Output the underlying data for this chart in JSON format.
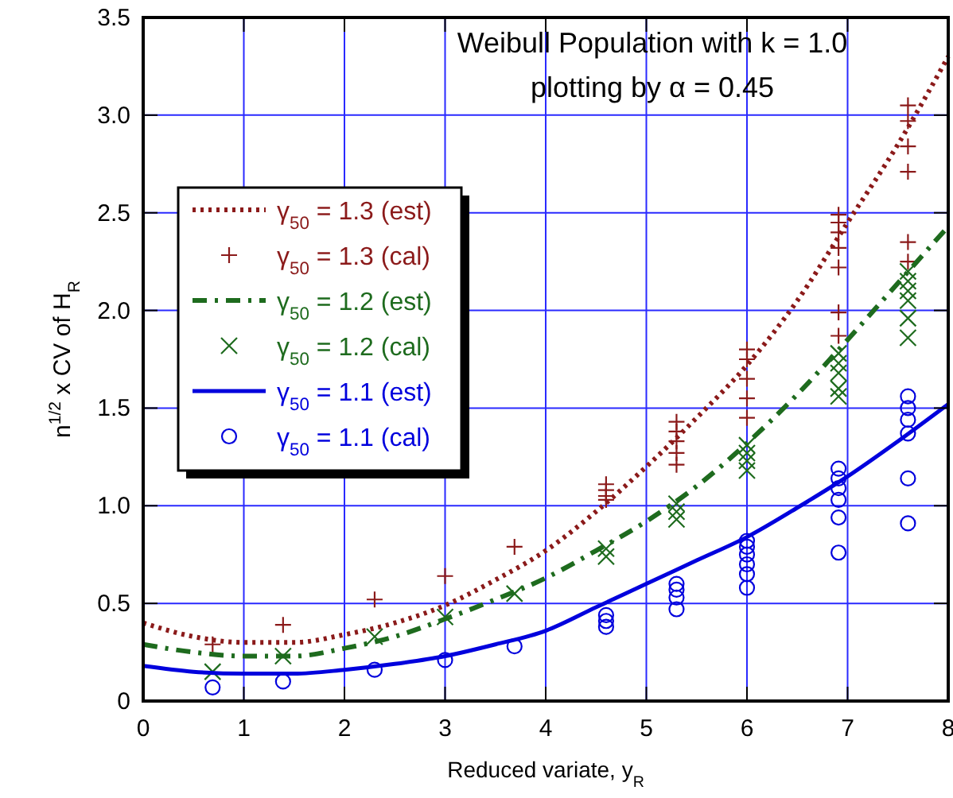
{
  "chart_data": {
    "type": "scatter",
    "title": "Weibull Population with k = 1.0",
    "subtitle": "plotting by α = 0.45",
    "xlabel": "Reduced variate, y$_{R}$",
    "ylabel": "n$^{1/2}$ x CV of H$_{R}$",
    "xlim": [
      0,
      8
    ],
    "xticks": [
      0,
      1,
      2,
      3,
      4,
      5,
      6,
      7,
      8
    ],
    "ylim": [
      0,
      3.5
    ],
    "yticks": [
      0,
      0.5,
      {
        "value": 1,
        "label": "1.0"
      },
      1.5,
      {
        "value": 2,
        "label": "2.0"
      },
      2.5,
      {
        "value": 3,
        "label": "3.0"
      },
      3.5
    ],
    "grid": true,
    "legend": "top left",
    "series": [
      {
        "name": "γ$_{50}$ = 1.3 (est)",
        "type": "line",
        "line_style": "dotted",
        "marker": "none",
        "color": "#8b1a1a",
        "x": [
          0,
          0.5,
          1,
          1.5,
          2,
          2.5,
          3,
          3.5,
          4,
          4.5,
          5,
          5.5,
          6,
          6.5,
          7,
          7.5,
          8
        ],
        "values": [
          0.4,
          0.33,
          0.3,
          0.3,
          0.34,
          0.4,
          0.49,
          0.62,
          0.77,
          0.97,
          1.2,
          1.45,
          1.72,
          2.05,
          2.45,
          2.85,
          3.3
        ]
      },
      {
        "name": "γ$_{50}$ = 1.3 (cal)",
        "marker": "cross",
        "color": "#8b1a1a",
        "x": [
          0.69,
          1.39,
          2.3,
          3.0,
          3.69,
          4.6,
          4.6,
          4.6,
          4.6,
          5.3,
          5.3,
          5.3,
          5.3,
          5.3,
          6.0,
          6.0,
          6.0,
          6.0,
          6.0,
          6.91,
          6.91,
          6.91,
          6.91,
          6.91,
          6.91,
          6.91,
          7.6,
          7.6,
          7.6,
          7.6,
          7.6,
          7.6
        ],
        "values": [
          0.29,
          0.39,
          0.52,
          0.64,
          0.79,
          1.11,
          1.08,
          1.05,
          1.03,
          1.43,
          1.38,
          1.33,
          1.27,
          1.21,
          1.8,
          1.75,
          1.65,
          1.55,
          1.45,
          2.49,
          2.45,
          2.4,
          2.32,
          2.22,
          1.99,
          1.87,
          3.05,
          2.97,
          2.84,
          2.71,
          2.35,
          2.25
        ]
      },
      {
        "name": "γ$_{50}$ = 1.2 (est)",
        "type": "line",
        "line_style": "dashdot",
        "marker": "none",
        "color": "#1e6b1e",
        "x": [
          0,
          0.5,
          1,
          1.5,
          2,
          2.5,
          3,
          3.5,
          4,
          4.5,
          5,
          5.5,
          6,
          6.5,
          7,
          7.5,
          8
        ],
        "values": [
          0.29,
          0.25,
          0.23,
          0.23,
          0.27,
          0.33,
          0.42,
          0.52,
          0.63,
          0.77,
          0.92,
          1.1,
          1.32,
          1.57,
          1.85,
          2.14,
          2.43
        ]
      },
      {
        "name": "γ$_{50}$ = 1.2 (cal)",
        "marker": "x",
        "color": "#1e6b1e",
        "x": [
          0.69,
          1.39,
          2.3,
          3.0,
          3.69,
          4.6,
          4.6,
          5.3,
          5.3,
          5.3,
          6.0,
          6.0,
          6.0,
          6.0,
          6.91,
          6.91,
          6.91,
          6.91,
          6.91,
          7.6,
          7.6,
          7.6,
          7.6,
          7.6,
          7.6
        ],
        "values": [
          0.15,
          0.23,
          0.33,
          0.43,
          0.55,
          0.78,
          0.74,
          1.01,
          0.97,
          0.93,
          1.31,
          1.27,
          1.23,
          1.18,
          1.78,
          1.73,
          1.68,
          1.6,
          1.56,
          2.2,
          2.15,
          2.1,
          2.05,
          1.96,
          1.86
        ]
      },
      {
        "name": "γ$_{50}$ = 1.1 (est)",
        "type": "line",
        "line_style": "solid",
        "marker": "none",
        "color": "#0000dd",
        "x": [
          0,
          0.5,
          1,
          1.5,
          2,
          2.5,
          3,
          3.5,
          4,
          4.5,
          5,
          5.5,
          6,
          6.5,
          7,
          7.5,
          8
        ],
        "values": [
          0.18,
          0.15,
          0.14,
          0.14,
          0.16,
          0.19,
          0.23,
          0.29,
          0.36,
          0.48,
          0.6,
          0.72,
          0.84,
          0.99,
          1.15,
          1.33,
          1.52
        ]
      },
      {
        "name": "γ$_{50}$ = 1.1 (cal)",
        "marker": "circle",
        "color": "#0000dd",
        "x": [
          0.69,
          1.39,
          2.3,
          3.0,
          3.69,
          4.6,
          4.6,
          4.6,
          5.3,
          5.3,
          5.3,
          5.3,
          6.0,
          6.0,
          6.0,
          6.0,
          6.0,
          6.0,
          6.91,
          6.91,
          6.91,
          6.91,
          6.91,
          6.91,
          7.6,
          7.6,
          7.6,
          7.6,
          7.6,
          7.6
        ],
        "values": [
          0.07,
          0.1,
          0.16,
          0.21,
          0.28,
          0.44,
          0.41,
          0.38,
          0.6,
          0.57,
          0.53,
          0.47,
          0.82,
          0.79,
          0.75,
          0.7,
          0.65,
          0.58,
          1.19,
          1.14,
          1.09,
          1.03,
          0.94,
          0.76,
          1.56,
          1.5,
          1.44,
          1.37,
          1.14,
          0.91
        ]
      }
    ]
  }
}
